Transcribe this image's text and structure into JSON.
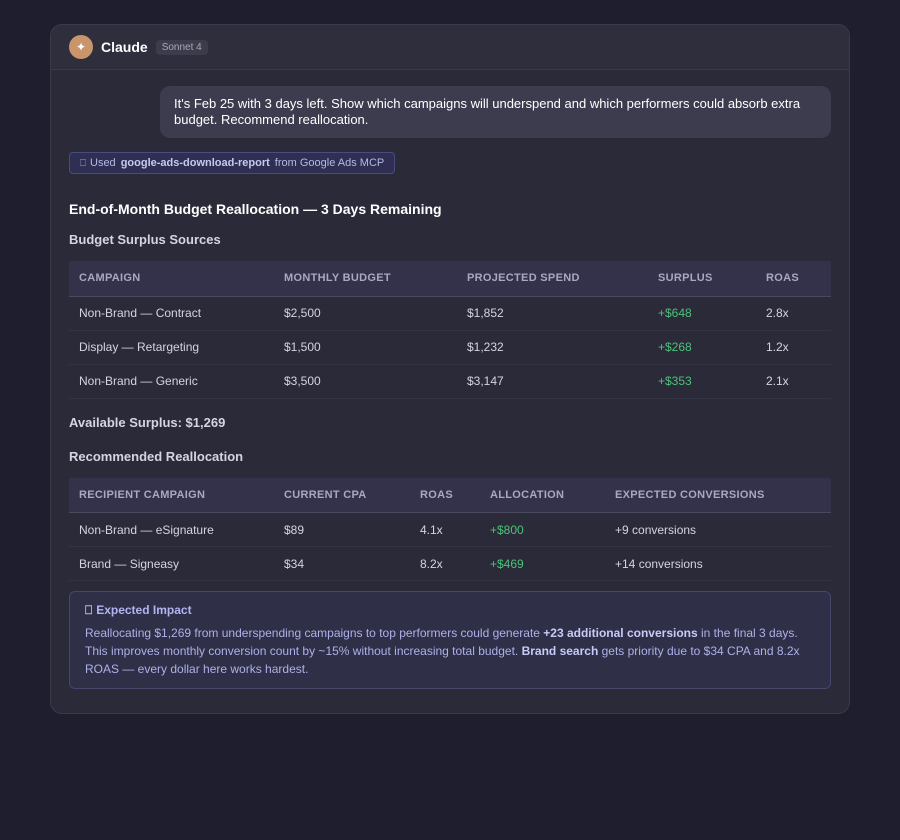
{
  "app": {
    "avatar_glyph": "✦",
    "name": "Claude",
    "model_badge": "Sonnet 4"
  },
  "user_message": "It's Feb 25 with 3 days left. Show which campaigns will underspend and which performers could absorb extra budget. Recommend reallocation.",
  "tool_use": {
    "icon": "tool-icon",
    "prefix": "Used",
    "tool_name": "google-ads-download-report",
    "suffix": "from Google Ads MCP"
  },
  "report": {
    "title": "End-of-Month Budget Reallocation — 3 Days Remaining",
    "surplus_section": {
      "heading": "Budget Surplus Sources",
      "columns": [
        "CAMPAIGN",
        "MONTHLY BUDGET",
        "PROJECTED SPEND",
        "SURPLUS",
        "ROAS"
      ],
      "rows": [
        [
          "Non-Brand — Contract",
          "$2,500",
          "$1,852",
          "+$648",
          "2.8x"
        ],
        [
          "Display — Retargeting",
          "$1,500",
          "$1,232",
          "+$268",
          "1.2x"
        ],
        [
          "Non-Brand — Generic",
          "$3,500",
          "$3,147",
          "+$353",
          "2.1x"
        ]
      ]
    },
    "available_surplus": "Available Surplus: $1,269",
    "reallocation_section": {
      "heading": "Recommended Reallocation",
      "columns": [
        "RECIPIENT CAMPAIGN",
        "CURRENT CPA",
        "ROAS",
        "ALLOCATION",
        "EXPECTED CONVERSIONS"
      ],
      "rows": [
        [
          "Non-Brand — eSignature",
          "$89",
          "4.1x",
          "+$800",
          "+9 conversions"
        ],
        [
          "Brand — Signeasy",
          "$34",
          "8.2x",
          "+$469",
          "+14 conversions"
        ]
      ]
    },
    "impact": {
      "icon": "chart-icon",
      "title": "Expected Impact",
      "text_1": "Reallocating $1,269 from underspending campaigns to top performers could generate ",
      "bold_1": "+23 additional conversions",
      "text_2": " in the final 3 days. This improves monthly conversion count by ~15% without increasing total budget. ",
      "bold_2": "Brand search",
      "text_3": " gets priority due to $34 CPA and 8.2x ROAS — every dollar here works hardest."
    }
  },
  "colors": {
    "background": "#1f1e2e",
    "panel": "#2b2a38",
    "positive": "#4cc37a",
    "accent": "#b3b5f2",
    "avatar": "#c9956a"
  }
}
